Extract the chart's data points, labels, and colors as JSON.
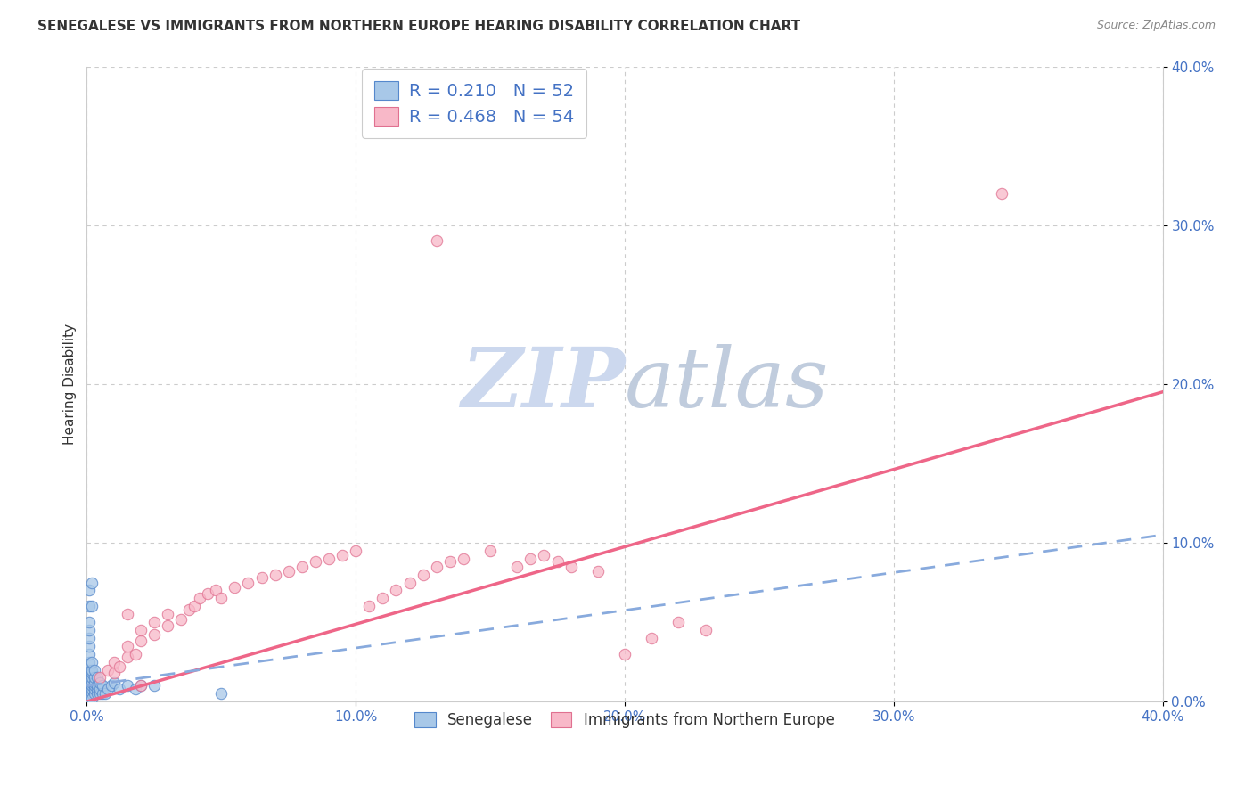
{
  "title": "SENEGALESE VS IMMIGRANTS FROM NORTHERN EUROPE HEARING DISABILITY CORRELATION CHART",
  "source": "Source: ZipAtlas.com",
  "ylabel": "Hearing Disability",
  "xlim": [
    0.0,
    0.4
  ],
  "ylim": [
    0.0,
    0.4
  ],
  "legend_r1": "0.210",
  "legend_n1": "52",
  "legend_r2": "0.468",
  "legend_n2": "54",
  "color_blue_fill": "#a8c8e8",
  "color_blue_edge": "#5588cc",
  "color_pink_fill": "#f8b8c8",
  "color_pink_edge": "#e07090",
  "trendline_blue_color": "#88aadd",
  "trendline_pink_color": "#ee6688",
  "watermark_zip_color": "#c8d8ee",
  "watermark_atlas_color": "#c8d8ee",
  "grid_color": "#cccccc",
  "label_senegalese": "Senegalese",
  "label_immigrants": "Immigrants from Northern Europe",
  "background_color": "#ffffff",
  "plot_bg_color": "#ffffff",
  "blue_scatter_x": [
    0.001,
    0.001,
    0.001,
    0.001,
    0.001,
    0.001,
    0.001,
    0.001,
    0.001,
    0.001,
    0.002,
    0.002,
    0.002,
    0.002,
    0.002,
    0.002,
    0.002,
    0.002,
    0.002,
    0.003,
    0.003,
    0.003,
    0.003,
    0.003,
    0.003,
    0.004,
    0.004,
    0.004,
    0.004,
    0.005,
    0.005,
    0.005,
    0.006,
    0.006,
    0.007,
    0.008,
    0.009,
    0.01,
    0.012,
    0.015,
    0.018,
    0.02,
    0.001,
    0.001,
    0.001,
    0.001,
    0.001,
    0.001,
    0.002,
    0.002,
    0.025,
    0.05
  ],
  "blue_scatter_y": [
    0.005,
    0.008,
    0.01,
    0.012,
    0.015,
    0.018,
    0.02,
    0.025,
    0.03,
    0.002,
    0.005,
    0.008,
    0.01,
    0.012,
    0.015,
    0.018,
    0.02,
    0.025,
    0.002,
    0.005,
    0.008,
    0.01,
    0.012,
    0.015,
    0.02,
    0.005,
    0.008,
    0.01,
    0.015,
    0.005,
    0.008,
    0.012,
    0.005,
    0.01,
    0.005,
    0.008,
    0.01,
    0.012,
    0.008,
    0.01,
    0.008,
    0.01,
    0.035,
    0.04,
    0.045,
    0.05,
    0.06,
    0.07,
    0.06,
    0.075,
    0.01,
    0.005
  ],
  "pink_scatter_x": [
    0.005,
    0.008,
    0.01,
    0.01,
    0.012,
    0.015,
    0.015,
    0.018,
    0.02,
    0.02,
    0.025,
    0.025,
    0.03,
    0.03,
    0.035,
    0.038,
    0.04,
    0.042,
    0.045,
    0.048,
    0.05,
    0.055,
    0.06,
    0.065,
    0.07,
    0.075,
    0.08,
    0.085,
    0.09,
    0.095,
    0.1,
    0.105,
    0.11,
    0.115,
    0.12,
    0.125,
    0.13,
    0.135,
    0.14,
    0.15,
    0.16,
    0.165,
    0.17,
    0.175,
    0.18,
    0.19,
    0.2,
    0.21,
    0.22,
    0.23,
    0.13,
    0.34,
    0.015,
    0.02
  ],
  "pink_scatter_y": [
    0.015,
    0.02,
    0.018,
    0.025,
    0.022,
    0.028,
    0.035,
    0.03,
    0.038,
    0.045,
    0.042,
    0.05,
    0.048,
    0.055,
    0.052,
    0.058,
    0.06,
    0.065,
    0.068,
    0.07,
    0.065,
    0.072,
    0.075,
    0.078,
    0.08,
    0.082,
    0.085,
    0.088,
    0.09,
    0.092,
    0.095,
    0.06,
    0.065,
    0.07,
    0.075,
    0.08,
    0.085,
    0.088,
    0.09,
    0.095,
    0.085,
    0.09,
    0.092,
    0.088,
    0.085,
    0.082,
    0.03,
    0.04,
    0.05,
    0.045,
    0.29,
    0.32,
    0.055,
    0.01
  ],
  "pink_trendline_x0": 0.0,
  "pink_trendline_y0": 0.0,
  "pink_trendline_x1": 0.4,
  "pink_trendline_y1": 0.195,
  "blue_trendline_x0": 0.0,
  "blue_trendline_y0": 0.01,
  "blue_trendline_x1": 0.4,
  "blue_trendline_y1": 0.105,
  "title_fontsize": 11,
  "axis_label_color": "#4472c4",
  "text_color": "#333333"
}
